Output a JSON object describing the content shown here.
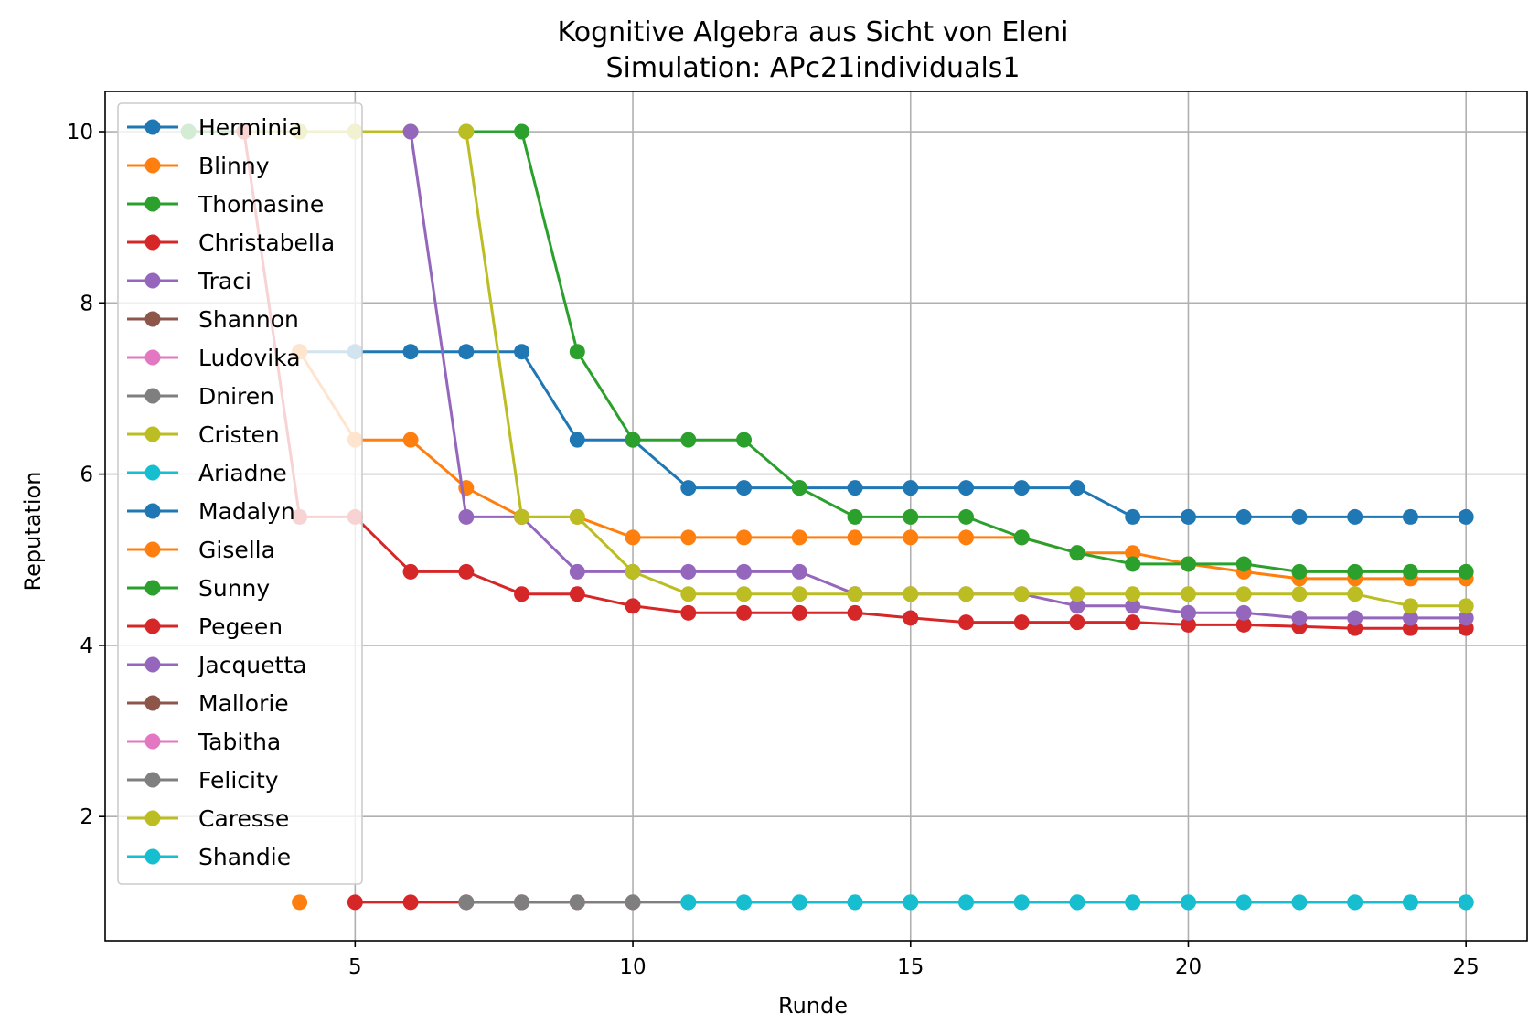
{
  "chart_data": {
    "type": "line",
    "title": "Kognitive Algebra aus Sicht von Eleni",
    "subtitle": "Simulation: APc21individuals1",
    "xlabel": "Runde",
    "ylabel": "Reputation",
    "xlim": [
      0.5,
      26.1
    ],
    "ylim": [
      0.55,
      10.47
    ],
    "xticks": [
      5,
      10,
      15,
      20,
      25
    ],
    "yticks": [
      2,
      4,
      6,
      8,
      10
    ],
    "grid": true,
    "legend_position": "upper-left",
    "series": [
      {
        "name": "Herminia",
        "color": "#1f77b4",
        "x": [
          2
        ],
        "y": [
          10
        ]
      },
      {
        "name": "Blinny",
        "color": "#ff7f0e",
        "x": [
          4
        ],
        "y": [
          1
        ]
      },
      {
        "name": "Thomasine",
        "color": "#2ca02c",
        "x": [
          2,
          3,
          4,
          5,
          6
        ],
        "y": [
          10,
          10,
          10,
          10,
          10
        ]
      },
      {
        "name": "Christabella",
        "color": "#d62728",
        "x": [
          5,
          6,
          7,
          8
        ],
        "y": [
          1,
          1,
          1,
          1
        ]
      },
      {
        "name": "Traci",
        "color": "#9467bd",
        "x": [
          8
        ],
        "y": [
          1
        ]
      },
      {
        "name": "Shannon",
        "color": "#8c564b",
        "x": [
          7,
          8,
          9,
          10
        ],
        "y": [
          1,
          1,
          1,
          1
        ]
      },
      {
        "name": "Ludovika",
        "color": "#e377c2",
        "x": [
          9,
          10
        ],
        "y": [
          1,
          1
        ]
      },
      {
        "name": "Dniren",
        "color": "#7f7f7f",
        "x": [
          7,
          8,
          9,
          10,
          11
        ],
        "y": [
          1,
          1,
          1,
          1,
          1
        ]
      },
      {
        "name": "Cristen",
        "color": "#bcbd22",
        "x": [
          3,
          4,
          5,
          6
        ],
        "y": [
          10,
          10,
          10,
          10
        ]
      },
      {
        "name": "Ariadne",
        "color": "#17becf",
        "x": [
          11,
          12,
          13,
          14,
          15,
          16,
          17,
          18,
          19,
          20,
          21,
          22,
          23,
          24,
          25
        ],
        "y": [
          1,
          1,
          1,
          1,
          1,
          1,
          1,
          1,
          1,
          1,
          1,
          1,
          1,
          1,
          1
        ]
      },
      {
        "name": "Madalyn",
        "color": "#1f77b4",
        "x": [
          4,
          5,
          6,
          7,
          8,
          9,
          10,
          11,
          12,
          13,
          14,
          15,
          16,
          17,
          18,
          19,
          20,
          21,
          22,
          23,
          24,
          25
        ],
        "y": [
          7.43,
          7.43,
          7.43,
          7.43,
          7.43,
          6.4,
          6.4,
          5.84,
          5.84,
          5.84,
          5.84,
          5.84,
          5.84,
          5.84,
          5.84,
          5.5,
          5.5,
          5.5,
          5.5,
          5.5,
          5.5,
          5.5
        ]
      },
      {
        "name": "Gisella",
        "color": "#ff7f0e",
        "x": [
          4,
          5,
          6,
          7,
          8,
          9,
          10,
          11,
          12,
          13,
          14,
          15,
          16,
          17,
          18,
          19,
          20,
          21,
          22,
          23,
          24,
          25
        ],
        "y": [
          7.43,
          6.4,
          6.4,
          5.84,
          5.5,
          5.5,
          5.26,
          5.26,
          5.26,
          5.26,
          5.26,
          5.26,
          5.26,
          5.26,
          5.08,
          5.08,
          4.95,
          4.86,
          4.78,
          4.78,
          4.78,
          4.78
        ]
      },
      {
        "name": "Sunny",
        "color": "#2ca02c",
        "x": [
          7,
          8,
          9,
          10,
          11,
          12,
          13,
          14,
          15,
          16,
          17,
          18,
          19,
          20,
          21,
          22,
          23,
          24,
          25
        ],
        "y": [
          10,
          10,
          7.43,
          6.4,
          6.4,
          6.4,
          5.84,
          5.5,
          5.5,
          5.5,
          5.26,
          5.08,
          4.95,
          4.95,
          4.95,
          4.86,
          4.86,
          4.86,
          4.86
        ]
      },
      {
        "name": "Pegeen",
        "color": "#d62728",
        "x": [
          3,
          4,
          5,
          6,
          7,
          8,
          9,
          10,
          11,
          12,
          13,
          14,
          15,
          16,
          17,
          18,
          19,
          20,
          21,
          22,
          23,
          24,
          25
        ],
        "y": [
          10,
          5.5,
          5.5,
          4.86,
          4.86,
          4.6,
          4.6,
          4.46,
          4.38,
          4.38,
          4.38,
          4.38,
          4.32,
          4.27,
          4.27,
          4.27,
          4.27,
          4.24,
          4.24,
          4.22,
          4.2,
          4.2,
          4.2
        ]
      },
      {
        "name": "Jacquetta",
        "color": "#9467bd",
        "x": [
          6,
          7,
          8,
          9,
          10,
          11,
          12,
          13,
          14,
          15,
          16,
          17,
          18,
          19,
          20,
          21,
          22,
          23,
          24,
          25
        ],
        "y": [
          10,
          5.5,
          5.5,
          4.86,
          4.86,
          4.86,
          4.86,
          4.86,
          4.6,
          4.6,
          4.6,
          4.6,
          4.46,
          4.46,
          4.38,
          4.38,
          4.32,
          4.32,
          4.32,
          4.32
        ]
      },
      {
        "name": "Mallorie",
        "color": "#8c564b",
        "x": [],
        "y": []
      },
      {
        "name": "Tabitha",
        "color": "#e377c2",
        "x": [],
        "y": []
      },
      {
        "name": "Felicity",
        "color": "#7f7f7f",
        "x": [],
        "y": []
      },
      {
        "name": "Caresse",
        "color": "#bcbd22",
        "x": [
          7,
          8,
          9,
          10,
          11,
          12,
          13,
          14,
          15,
          16,
          17,
          18,
          19,
          20,
          21,
          22,
          23,
          24,
          25
        ],
        "y": [
          10,
          5.5,
          5.5,
          4.86,
          4.6,
          4.6,
          4.6,
          4.6,
          4.6,
          4.6,
          4.6,
          4.6,
          4.6,
          4.6,
          4.6,
          4.6,
          4.6,
          4.46,
          4.46
        ]
      },
      {
        "name": "Shandie",
        "color": "#17becf",
        "x": [
          11,
          12,
          13,
          14,
          15,
          16,
          17,
          18,
          19,
          20,
          21,
          22,
          23,
          24,
          25
        ],
        "y": [
          1,
          1,
          1,
          1,
          1,
          1,
          1,
          1,
          1,
          1,
          1,
          1,
          1,
          1,
          1
        ]
      }
    ]
  }
}
